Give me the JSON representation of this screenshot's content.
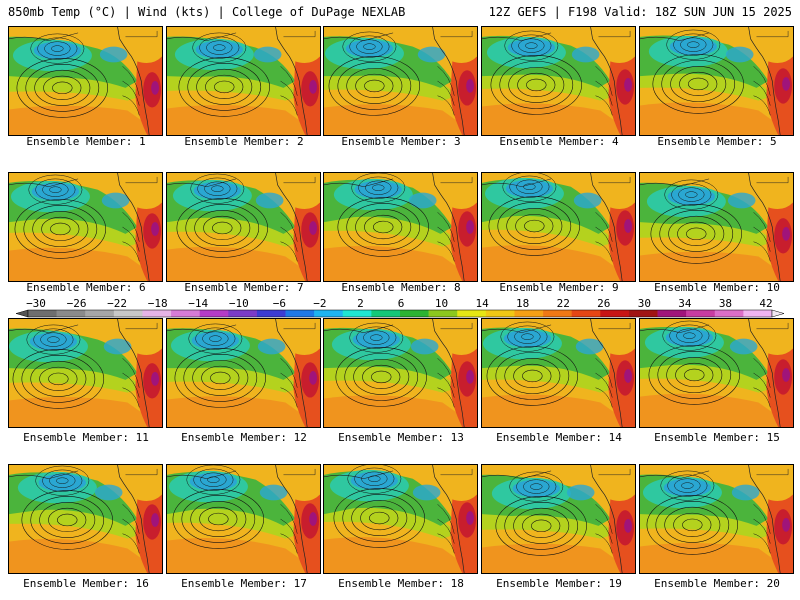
{
  "header": {
    "left": "850mb Temp (°C) | Wind (kts) | College of DuPage NEXLAB",
    "right": "12Z GEFS | F198 Valid: 18Z SUN JUN 15 2025"
  },
  "panel_label_prefix": "Ensemble Member: ",
  "members": [
    1,
    2,
    3,
    4,
    5,
    6,
    7,
    8,
    9,
    10,
    11,
    12,
    13,
    14,
    15,
    16,
    17,
    18,
    19,
    20
  ],
  "colorbar": {
    "tick_labels": [
      "−30",
      "−26",
      "−22",
      "−18",
      "−14",
      "−10",
      "−6",
      "−2",
      "2",
      "6",
      "10",
      "14",
      "18",
      "22",
      "26",
      "30",
      "34",
      "38",
      "42"
    ],
    "colors": [
      "#6e6e6e",
      "#8a8a8a",
      "#a6a6a6",
      "#c8c8c8",
      "#e6b4e6",
      "#d77bd7",
      "#b43cc8",
      "#7b3cc8",
      "#3c3cd2",
      "#1e78e6",
      "#1eb4f0",
      "#1ee6d2",
      "#14c878",
      "#2db432",
      "#8cc81e",
      "#e6e614",
      "#f0c814",
      "#f5a014",
      "#f07814",
      "#e64614",
      "#c81414",
      "#a01414",
      "#a0147a",
      "#c83ca0",
      "#dc6ec8",
      "#f0b4f0"
    ]
  },
  "map_colors": {
    "cold": "#2aa7d2",
    "cool": "#2fc8a0",
    "mild": "#4bb43c",
    "warm_mid": "#b4d21e",
    "warm": "#f0b41e",
    "hot": "#f08c1e",
    "very_hot": "#e6501e",
    "extreme": "#c81e2d",
    "purple": "#a0147a",
    "contour": "#111111",
    "coast": "#222222"
  }
}
